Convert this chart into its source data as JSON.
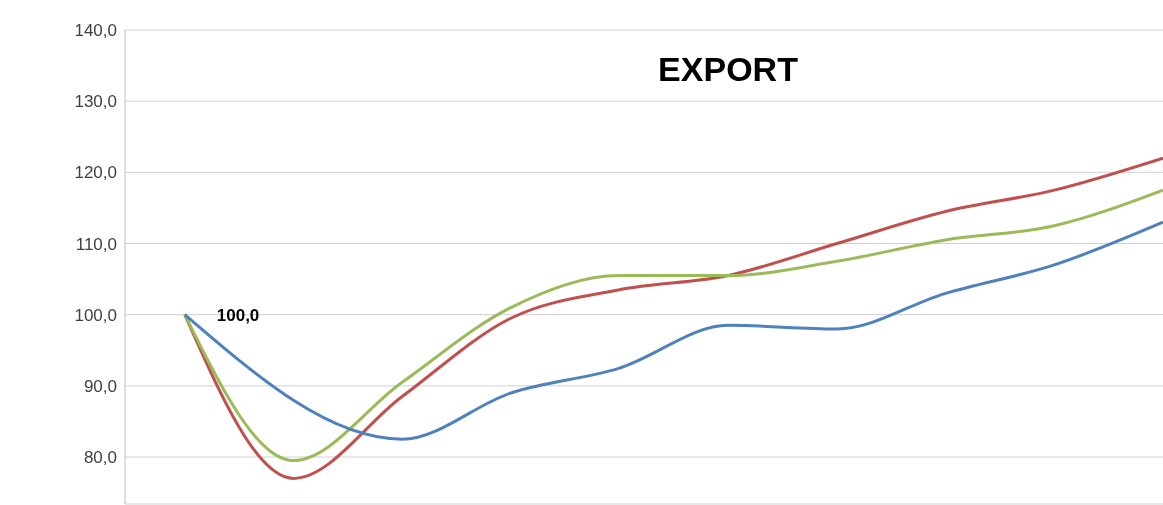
{
  "chart_data": {
    "type": "line",
    "title": "EXPORT",
    "categories": [
      null,
      null,
      null,
      null,
      null,
      null,
      null,
      null,
      null,
      null
    ],
    "series": [
      {
        "color": "#c0504d",
        "values": [
          100,
          77,
          88.5,
          99.5,
          103.5,
          105.5,
          110,
          114.5,
          117.5,
          122
        ],
        "value_labels": [
          "100,0",
          null,
          null,
          null,
          null,
          null,
          null,
          null,
          null,
          null
        ]
      },
      {
        "color": "#9bbb59",
        "values": [
          100,
          79.5,
          90.5,
          101,
          105.5,
          105.5,
          107.5,
          110.5,
          112.5,
          117.5
        ]
      },
      {
        "color": "#4f81bd",
        "values": [
          100,
          null,
          82.5,
          89,
          92.5,
          98.5,
          98,
          103,
          107,
          113
        ]
      }
    ],
    "ylim": [
      73.4,
      140
    ],
    "yticks": [
      {
        "value": 80,
        "label": "80,0"
      },
      {
        "value": 90,
        "label": "90,0"
      },
      {
        "value": 100,
        "label": "100,0"
      },
      {
        "value": 110,
        "label": "110,0"
      },
      {
        "value": 120,
        "label": "120,0"
      },
      {
        "value": 130,
        "label": "130,0"
      },
      {
        "value": 140,
        "label": "140,0"
      }
    ],
    "grid": "y",
    "legend": false,
    "marker": "none",
    "line_style": "solid"
  }
}
